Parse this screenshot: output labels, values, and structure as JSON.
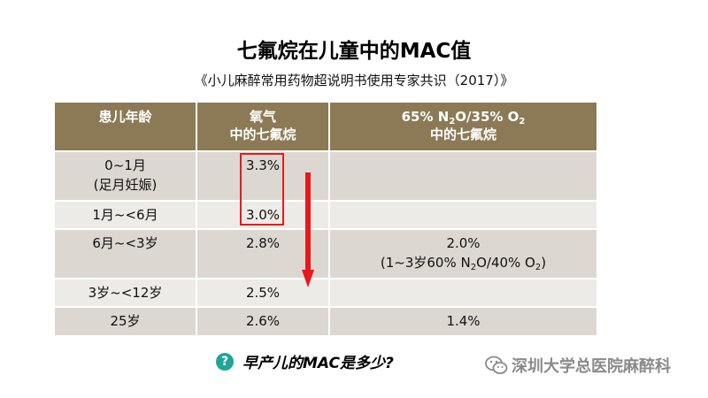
{
  "title": "七氟烷在儿童中的MAC值",
  "subtitle": "《小儿麻醉常用药物超说明书使用专家共识（2017）》",
  "table": {
    "headers": {
      "age": "患儿年龄",
      "oxygen_line1": "氧气",
      "oxygen_line2": "中的七氟烷",
      "n2o_pre": "65% N",
      "n2o_sub1": "2",
      "n2o_mid": "O/35% O",
      "n2o_sub2": "2",
      "n2o_line2": "中的七氟烷"
    },
    "rows": [
      {
        "age_line1": "0~1月",
        "age_line2": "(足月妊娠)",
        "oxygen": "3.3%"
      },
      {
        "age_line1": "1月~<6月",
        "oxygen": "3.0%"
      },
      {
        "age_line1": "6月~<3岁",
        "oxygen": "2.8%",
        "n2o_value": "2.0%",
        "n2o_note_pre": "(1~3岁60% N",
        "n2o_note_sub1": "2",
        "n2o_note_mid": "O/40% O",
        "n2o_note_sub2": "2",
        "n2o_note_post": ")"
      },
      {
        "age_line1": "3岁~<12岁",
        "oxygen": "2.5%"
      },
      {
        "age_line1": "25岁",
        "oxygen": "2.6%",
        "n2o_value": "1.4%"
      }
    ]
  },
  "question": {
    "icon": "?",
    "text": "早产儿的MAC是多少?"
  },
  "watermark": {
    "icon": "wechat-icon",
    "text": "深圳大学总医院麻醉科"
  },
  "colors": {
    "header_bg": "#8b7a55",
    "row_dark": "#dcd8d1",
    "row_light": "#ecebe8",
    "highlight": "#e8191c",
    "question_icon": "#1fa59a"
  }
}
